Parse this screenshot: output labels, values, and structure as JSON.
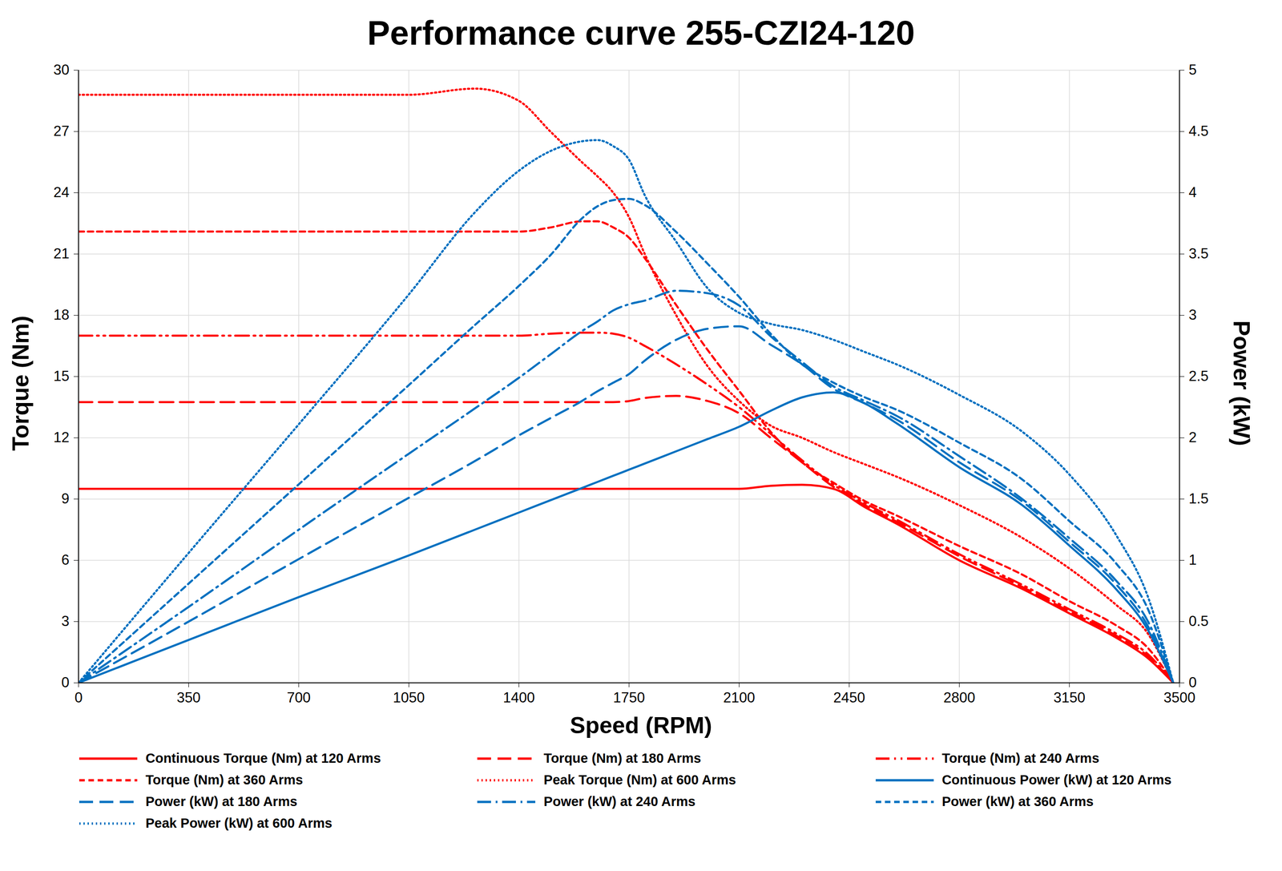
{
  "chart_data": {
    "type": "line",
    "title": "Performance curve 255-CZI24-120",
    "x_label": "Speed (RPM)",
    "y_label": "Torque (Nm)",
    "y2_label": "Power (kW)",
    "x": [
      0,
      350,
      700,
      1050,
      1260,
      1400,
      1500,
      1600,
      1650,
      1700,
      1750,
      1800,
      1900,
      2000,
      2100,
      2200,
      2300,
      2400,
      2500,
      2600,
      2800,
      3000,
      3150,
      3300,
      3400,
      3480
    ],
    "xlim": [
      0,
      3500
    ],
    "xticks": [
      0,
      350,
      700,
      1050,
      1400,
      1750,
      2100,
      2450,
      2800,
      3150,
      3500
    ],
    "ylim": [
      0,
      30
    ],
    "yticks": [
      0,
      3,
      6,
      9,
      12,
      15,
      18,
      21,
      24,
      27,
      30
    ],
    "y2lim": [
      0,
      5
    ],
    "y2ticks": [
      0,
      0.5,
      1,
      1.5,
      2,
      2.5,
      3,
      3.5,
      4,
      4.5,
      5
    ],
    "grid": true,
    "legend": "bottom",
    "series": [
      {
        "name": "Continuous Torque (Nm) at 120 Arms",
        "color": "#ff0000",
        "line_style": "solid",
        "values": [
          9.5,
          9.5,
          9.5,
          9.5,
          9.5,
          9.5,
          9.5,
          9.5,
          9.5,
          9.5,
          9.5,
          9.5,
          9.5,
          9.5,
          9.5,
          9.65,
          9.7,
          9.5,
          8.6,
          7.8,
          6.0,
          4.6,
          3.4,
          2.2,
          1.2,
          0
        ]
      },
      {
        "name": "Torque (Nm) at 180 Arms",
        "color": "#ff0000",
        "line_style": "long_dash",
        "values": [
          13.75,
          13.75,
          13.75,
          13.75,
          13.75,
          13.75,
          13.75,
          13.75,
          13.75,
          13.75,
          13.8,
          13.95,
          14.05,
          13.8,
          13.2,
          12.0,
          10.8,
          9.6,
          8.7,
          7.9,
          6.2,
          4.7,
          3.5,
          2.3,
          1.3,
          0
        ]
      },
      {
        "name": "Torque (Nm) at 240 Arms",
        "color": "#ff0000",
        "line_style": "dash_dot_dot",
        "values": [
          17.0,
          17.0,
          17.0,
          17.0,
          17.0,
          17.0,
          17.1,
          17.15,
          17.15,
          17.1,
          16.9,
          16.5,
          15.6,
          14.6,
          13.5,
          12.2,
          10.9,
          9.7,
          8.8,
          8.0,
          6.3,
          4.8,
          3.6,
          2.4,
          1.4,
          0
        ]
      },
      {
        "name": "Torque (Nm) at 360 Arms",
        "color": "#ff0000",
        "line_style": "dash",
        "values": [
          22.1,
          22.1,
          22.1,
          22.1,
          22.1,
          22.1,
          22.3,
          22.6,
          22.6,
          22.3,
          21.8,
          20.8,
          18.5,
          16.3,
          14.3,
          12.3,
          10.8,
          9.8,
          8.9,
          8.2,
          6.7,
          5.3,
          4.0,
          2.8,
          1.7,
          0
        ]
      },
      {
        "name": "Peak Torque (Nm) at 600 Arms",
        "color": "#ff0000",
        "line_style": "dot",
        "values": [
          28.8,
          28.8,
          28.8,
          28.8,
          29.1,
          28.5,
          27.0,
          25.5,
          24.8,
          24.0,
          22.8,
          21.0,
          18.0,
          15.5,
          13.8,
          12.6,
          12.0,
          11.3,
          10.7,
          10.1,
          8.7,
          7.1,
          5.6,
          3.8,
          2.4,
          0
        ]
      },
      {
        "name": "Continuous Power (kW) at 120 Arms",
        "color": "#0070c0",
        "line_style": "solid",
        "axis": "y2",
        "values": [
          0,
          0.35,
          0.7,
          1.04,
          1.25,
          1.39,
          1.49,
          1.59,
          1.64,
          1.69,
          1.74,
          1.79,
          1.89,
          1.99,
          2.09,
          2.22,
          2.33,
          2.37,
          2.28,
          2.12,
          1.76,
          1.45,
          1.12,
          0.76,
          0.43,
          0
        ]
      },
      {
        "name": "Power (kW) at 180 Arms",
        "color": "#0070c0",
        "line_style": "long_dash",
        "axis": "y2",
        "values": [
          0,
          0.5,
          1.01,
          1.51,
          1.81,
          2.02,
          2.16,
          2.3,
          2.38,
          2.45,
          2.52,
          2.63,
          2.8,
          2.89,
          2.91,
          2.76,
          2.6,
          2.4,
          2.28,
          2.15,
          1.8,
          1.48,
          1.15,
          0.8,
          0.46,
          0
        ]
      },
      {
        "name": "Power (kW) at 240 Arms",
        "color": "#0070c0",
        "line_style": "dash_dot",
        "axis": "y2",
        "values": [
          0,
          0.62,
          1.25,
          1.87,
          2.24,
          2.49,
          2.68,
          2.87,
          2.95,
          3.04,
          3.09,
          3.12,
          3.2,
          3.18,
          3.08,
          2.83,
          2.62,
          2.42,
          2.3,
          2.18,
          1.85,
          1.5,
          1.18,
          0.83,
          0.5,
          0
        ]
      },
      {
        "name": "Power (kW) at 360 Arms",
        "color": "#0070c0",
        "line_style": "dash",
        "axis": "y2",
        "values": [
          0,
          0.81,
          1.62,
          2.43,
          2.92,
          3.24,
          3.49,
          3.79,
          3.89,
          3.94,
          3.95,
          3.9,
          3.68,
          3.42,
          3.15,
          2.85,
          2.6,
          2.45,
          2.33,
          2.23,
          1.96,
          1.66,
          1.32,
          0.97,
          0.6,
          0
        ]
      },
      {
        "name": "Peak Power (kW) at 600 Arms",
        "color": "#0070c0",
        "line_style": "dot",
        "axis": "y2",
        "values": [
          0,
          1.06,
          2.11,
          3.17,
          3.84,
          4.18,
          4.34,
          4.42,
          4.43,
          4.38,
          4.27,
          3.98,
          3.6,
          3.22,
          3.02,
          2.93,
          2.88,
          2.8,
          2.7,
          2.6,
          2.35,
          2.05,
          1.7,
          1.2,
          0.7,
          0
        ]
      }
    ]
  }
}
